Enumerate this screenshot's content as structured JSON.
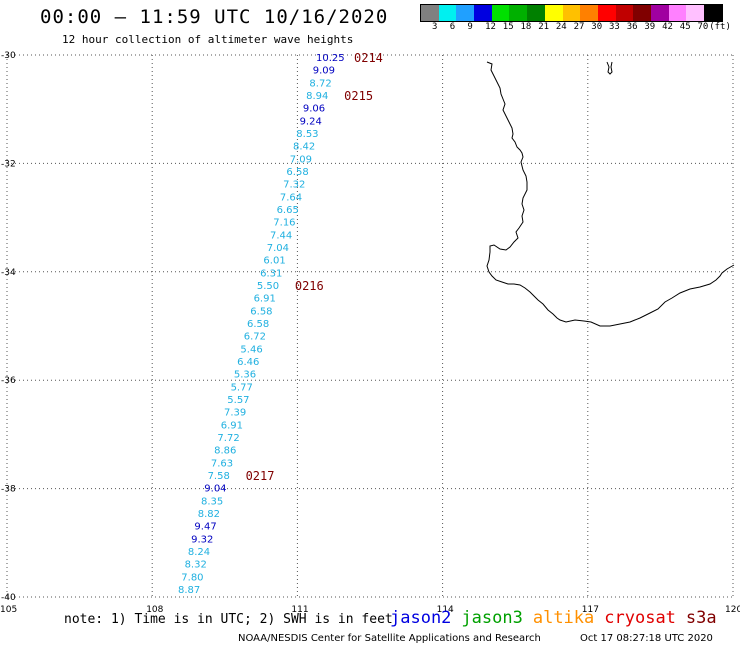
{
  "title": "00:00 – 11:59 UTC 10/16/2020",
  "subtitle": "12 hour collection of altimeter wave heights",
  "legend": {
    "unit": "(ft)",
    "colors": [
      "#808080",
      "#00f0f0",
      "#20a0ff",
      "#0000e0",
      "#00e000",
      "#00b000",
      "#008000",
      "#ffff00",
      "#ffc000",
      "#ff8000",
      "#ff0000",
      "#c00000",
      "#800000",
      "#a000a0",
      "#ff80ff",
      "#ffc0ff",
      "#000000"
    ],
    "labels": [
      "3",
      "6",
      "9",
      "12",
      "15",
      "18",
      "21",
      "24",
      "27",
      "30",
      "33",
      "36",
      "39",
      "42",
      "45",
      "70"
    ]
  },
  "map": {
    "lon_range": [
      105,
      120
    ],
    "lat_range": [
      -40,
      -30
    ],
    "lon_ticks": [
      "105",
      "108",
      "111",
      "114",
      "117",
      "120"
    ],
    "lat_ticks": [
      "-30",
      "-32",
      "-34",
      "-36",
      "-38",
      "-40"
    ],
    "grid": "dotted"
  },
  "wave_heights": [
    {
      "v": "10.25",
      "c": "dark-blue"
    },
    {
      "v": "9.09",
      "c": "dark-blue"
    },
    {
      "v": "8.72",
      "c": "cyan"
    },
    {
      "v": "8.94",
      "c": "cyan"
    },
    {
      "v": "9.06",
      "c": "dark-blue"
    },
    {
      "v": "9.24",
      "c": "dark-blue"
    },
    {
      "v": "8.53",
      "c": "cyan"
    },
    {
      "v": "8.42",
      "c": "cyan"
    },
    {
      "v": "7.09",
      "c": "cyan"
    },
    {
      "v": "6.58",
      "c": "cyan"
    },
    {
      "v": "7.32",
      "c": "cyan"
    },
    {
      "v": "7.64",
      "c": "cyan"
    },
    {
      "v": "6.65",
      "c": "cyan"
    },
    {
      "v": "7.16",
      "c": "cyan"
    },
    {
      "v": "7.44",
      "c": "cyan"
    },
    {
      "v": "7.04",
      "c": "cyan"
    },
    {
      "v": "6.01",
      "c": "cyan"
    },
    {
      "v": "6.31",
      "c": "cyan"
    },
    {
      "v": "5.50",
      "c": "cyan"
    },
    {
      "v": "6.91",
      "c": "cyan"
    },
    {
      "v": "6.58",
      "c": "cyan"
    },
    {
      "v": "6.58",
      "c": "cyan"
    },
    {
      "v": "6.72",
      "c": "cyan"
    },
    {
      "v": "5.46",
      "c": "cyan"
    },
    {
      "v": "6.46",
      "c": "cyan"
    },
    {
      "v": "5.36",
      "c": "cyan"
    },
    {
      "v": "5.77",
      "c": "cyan"
    },
    {
      "v": "5.57",
      "c": "cyan"
    },
    {
      "v": "7.39",
      "c": "cyan"
    },
    {
      "v": "6.91",
      "c": "cyan"
    },
    {
      "v": "7.72",
      "c": "cyan"
    },
    {
      "v": "8.86",
      "c": "cyan"
    },
    {
      "v": "7.63",
      "c": "cyan"
    },
    {
      "v": "7.58",
      "c": "cyan"
    },
    {
      "v": "9.04",
      "c": "dark-blue"
    },
    {
      "v": "8.35",
      "c": "cyan"
    },
    {
      "v": "8.82",
      "c": "cyan"
    },
    {
      "v": "9.47",
      "c": "dark-blue"
    },
    {
      "v": "9.32",
      "c": "dark-blue"
    },
    {
      "v": "8.24",
      "c": "cyan"
    },
    {
      "v": "8.32",
      "c": "cyan"
    },
    {
      "v": "7.80",
      "c": "cyan"
    },
    {
      "v": "8.87",
      "c": "cyan"
    }
  ],
  "pass_times": [
    {
      "label": "0214",
      "row": 0
    },
    {
      "label": "0215",
      "row": 3
    },
    {
      "label": "0216",
      "row": 18
    },
    {
      "label": "0217",
      "row": 33
    }
  ],
  "note": "note: 1) Time is in UTC; 2) SWH is in feet",
  "satellites": [
    {
      "name": "jason2",
      "color": "#0000e0"
    },
    {
      "name": "jason3",
      "color": "#00a000"
    },
    {
      "name": "altika",
      "color": "#ff9000"
    },
    {
      "name": "cryosat",
      "color": "#e00000"
    },
    {
      "name": "s3a",
      "color": "#800000"
    }
  ],
  "credit": "NOAA/NESDIS Center for Satellite Applications and Research",
  "timestamp": "Oct 17 08:27:18 UTC 2020",
  "value_colors": {
    "cyan": "#20b0e0",
    "dark-blue": "#0000c0",
    "pass": "#800000"
  }
}
